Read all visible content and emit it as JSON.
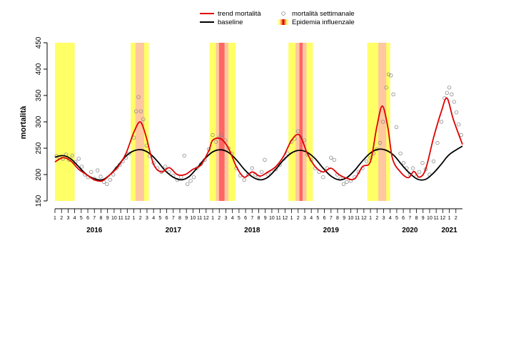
{
  "chart_data": {
    "type": "line",
    "ylabel": "mortalità",
    "xlabel": "",
    "ylim": [
      150,
      450
    ],
    "yticks": [
      150,
      200,
      250,
      300,
      350,
      400,
      450
    ],
    "x_range": [
      2016.0,
      2021.1667
    ],
    "month_labels": [
      "1",
      "2",
      "3",
      "4",
      "5",
      "6",
      "7",
      "8",
      "9",
      "10",
      "11",
      "12"
    ],
    "end_month_labels": [
      "1",
      "2"
    ],
    "year_labels": [
      {
        "label": "2016",
        "x": 2016.5
      },
      {
        "label": "2017",
        "x": 2017.5
      },
      {
        "label": "2018",
        "x": 2018.5
      },
      {
        "label": "2019",
        "x": 2019.5
      },
      {
        "label": "2020",
        "x": 2020.5
      },
      {
        "label": "2021",
        "x": 2021.0
      }
    ],
    "legend": {
      "trend": "trend mortalità",
      "baseline": "baseline",
      "weekly": "mortalità settimanale",
      "epidemic": "Epidemia influenzale"
    },
    "colors": {
      "trend": "#e00000",
      "baseline": "#000000",
      "points": "#8c8c8c",
      "epi_low": "#ffff66",
      "epi_mid": "#ffc8a0",
      "epi_high": "#ff6666"
    },
    "epidemic_periods": [
      {
        "level": "low",
        "x0": 2016.0,
        "x1": 2016.25
      },
      {
        "level": "low",
        "x0": 2016.96,
        "x1": 2017.19
      },
      {
        "level": "mid",
        "x0": 2017.02,
        "x1": 2017.13
      },
      {
        "level": "low",
        "x0": 2017.96,
        "x1": 2018.29
      },
      {
        "level": "mid",
        "x0": 2018.04,
        "x1": 2018.2
      },
      {
        "level": "high",
        "x0": 2018.08,
        "x1": 2018.15
      },
      {
        "level": "low",
        "x0": 2018.96,
        "x1": 2019.27
      },
      {
        "level": "mid",
        "x0": 2019.05,
        "x1": 2019.19
      },
      {
        "level": "high",
        "x0": 2019.1,
        "x1": 2019.14
      },
      {
        "level": "low",
        "x0": 2019.96,
        "x1": 2020.25
      },
      {
        "level": "mid",
        "x0": 2020.1,
        "x1": 2020.2
      }
    ],
    "series": [
      {
        "name": "trend mortalità",
        "x": [
          2016.0,
          2016.1,
          2016.2,
          2016.3,
          2016.4,
          2016.5,
          2016.6,
          2016.7,
          2016.8,
          2016.9,
          2017.0,
          2017.08,
          2017.15,
          2017.25,
          2017.35,
          2017.45,
          2017.55,
          2017.65,
          2017.75,
          2017.85,
          2017.95,
          2018.0,
          2018.1,
          2018.2,
          2018.3,
          2018.4,
          2018.5,
          2018.6,
          2018.7,
          2018.8,
          2018.9,
          2019.0,
          2019.1,
          2019.2,
          2019.3,
          2019.4,
          2019.5,
          2019.6,
          2019.7,
          2019.8,
          2019.9,
          2020.0,
          2020.08,
          2020.15,
          2020.22,
          2020.28,
          2020.38,
          2020.48,
          2020.55,
          2020.62,
          2020.7,
          2020.8,
          2020.9,
          2020.97,
          2021.05,
          2021.1667
        ],
        "values": [
          224,
          232,
          226,
          210,
          200,
          190,
          188,
          200,
          215,
          240,
          280,
          300,
          275,
          220,
          205,
          213,
          200,
          200,
          210,
          218,
          245,
          265,
          268,
          250,
          215,
          195,
          205,
          197,
          205,
          215,
          235,
          265,
          275,
          240,
          215,
          205,
          212,
          200,
          193,
          192,
          215,
          225,
          290,
          330,
          290,
          230,
          205,
          194,
          206,
          195,
          210,
          270,
          320,
          345,
          305,
          257
        ]
      },
      {
        "name": "baseline",
        "x": [
          2016.0,
          2016.1,
          2016.2,
          2016.3,
          2016.4,
          2016.5,
          2016.6,
          2016.7,
          2016.8,
          2016.9,
          2017.0,
          2017.1,
          2017.2,
          2017.3,
          2017.4,
          2017.5,
          2017.6,
          2017.7,
          2017.8,
          2017.9,
          2018.0,
          2018.1,
          2018.2,
          2018.3,
          2018.4,
          2018.5,
          2018.6,
          2018.7,
          2018.8,
          2018.9,
          2019.0,
          2019.1,
          2019.2,
          2019.3,
          2019.4,
          2019.5,
          2019.6,
          2019.7,
          2019.8,
          2019.9,
          2020.0,
          2020.1,
          2020.2,
          2020.3,
          2020.4,
          2020.5,
          2020.6,
          2020.7,
          2020.8,
          2020.9,
          2021.0,
          2021.1667
        ],
        "values": [
          233,
          236,
          230,
          215,
          200,
          192,
          190,
          200,
          217,
          235,
          245,
          247,
          240,
          225,
          207,
          195,
          190,
          196,
          212,
          230,
          243,
          247,
          242,
          228,
          210,
          196,
          190,
          195,
          210,
          228,
          241,
          246,
          242,
          230,
          212,
          197,
          190,
          194,
          208,
          226,
          241,
          248,
          246,
          236,
          218,
          202,
          191,
          191,
          203,
          220,
          238,
          254
        ]
      },
      {
        "name": "mortalità settimanale",
        "points": [
          [
            2016.02,
            235
          ],
          [
            2016.06,
            232
          ],
          [
            2016.1,
            230
          ],
          [
            2016.14,
            238
          ],
          [
            2016.18,
            228
          ],
          [
            2016.22,
            236
          ],
          [
            2016.26,
            224
          ],
          [
            2016.3,
            230
          ],
          [
            2016.34,
            215
          ],
          [
            2016.38,
            200
          ],
          [
            2016.42,
            195
          ],
          [
            2016.46,
            205
          ],
          [
            2016.5,
            192
          ],
          [
            2016.54,
            208
          ],
          [
            2016.58,
            196
          ],
          [
            2016.62,
            186
          ],
          [
            2016.66,
            182
          ],
          [
            2016.7,
            190
          ],
          [
            2016.74,
            200
          ],
          [
            2016.78,
            212
          ],
          [
            2016.82,
            218
          ],
          [
            2016.86,
            225
          ],
          [
            2016.9,
            232
          ],
          [
            2016.94,
            240
          ],
          [
            2017.0,
            270
          ],
          [
            2017.03,
            320
          ],
          [
            2017.06,
            347
          ],
          [
            2017.09,
            320
          ],
          [
            2017.12,
            305
          ],
          [
            2017.16,
            255
          ],
          [
            2017.2,
            235
          ],
          [
            2017.25,
            222
          ],
          [
            2017.3,
            212
          ],
          [
            2017.35,
            205
          ],
          [
            2017.4,
            215
          ],
          [
            2017.45,
            205
          ],
          [
            2017.5,
            198
          ],
          [
            2017.55,
            190
          ],
          [
            2017.6,
            195
          ],
          [
            2017.64,
            236
          ],
          [
            2017.68,
            182
          ],
          [
            2017.72,
            188
          ],
          [
            2017.76,
            195
          ],
          [
            2017.8,
            212
          ],
          [
            2017.85,
            220
          ],
          [
            2017.9,
            228
          ],
          [
            2017.95,
            248
          ],
          [
            2018.0,
            275
          ],
          [
            2018.04,
            262
          ],
          [
            2018.08,
            270
          ],
          [
            2018.12,
            275
          ],
          [
            2018.16,
            265
          ],
          [
            2018.2,
            250
          ],
          [
            2018.24,
            240
          ],
          [
            2018.3,
            212
          ],
          [
            2018.35,
            198
          ],
          [
            2018.4,
            190
          ],
          [
            2018.45,
            200
          ],
          [
            2018.5,
            212
          ],
          [
            2018.54,
            200
          ],
          [
            2018.58,
            196
          ],
          [
            2018.62,
            205
          ],
          [
            2018.66,
            228
          ],
          [
            2018.7,
            200
          ],
          [
            2018.75,
            205
          ],
          [
            2018.8,
            210
          ],
          [
            2018.85,
            218
          ],
          [
            2018.9,
            230
          ],
          [
            2018.95,
            240
          ],
          [
            2019.0,
            262
          ],
          [
            2019.04,
            268
          ],
          [
            2019.08,
            282
          ],
          [
            2019.12,
            272
          ],
          [
            2019.16,
            265
          ],
          [
            2019.2,
            238
          ],
          [
            2019.25,
            228
          ],
          [
            2019.3,
            212
          ],
          [
            2019.35,
            205
          ],
          [
            2019.4,
            195
          ],
          [
            2019.45,
            212
          ],
          [
            2019.5,
            232
          ],
          [
            2019.54,
            228
          ],
          [
            2019.58,
            200
          ],
          [
            2019.62,
            192
          ],
          [
            2019.66,
            182
          ],
          [
            2019.7,
            186
          ],
          [
            2019.75,
            188
          ],
          [
            2019.8,
            195
          ],
          [
            2019.85,
            205
          ],
          [
            2019.9,
            212
          ],
          [
            2019.95,
            225
          ],
          [
            2020.0,
            232
          ],
          [
            2020.04,
            240
          ],
          [
            2020.08,
            248
          ],
          [
            2020.12,
            260
          ],
          [
            2020.16,
            300
          ],
          [
            2020.2,
            365
          ],
          [
            2020.23,
            390
          ],
          [
            2020.26,
            388
          ],
          [
            2020.29,
            352
          ],
          [
            2020.33,
            290
          ],
          [
            2020.38,
            240
          ],
          [
            2020.42,
            222
          ],
          [
            2020.46,
            212
          ],
          [
            2020.5,
            200
          ],
          [
            2020.54,
            212
          ],
          [
            2020.58,
            196
          ],
          [
            2020.62,
            205
          ],
          [
            2020.66,
            222
          ],
          [
            2020.7,
            210
          ],
          [
            2020.75,
            200
          ],
          [
            2020.8,
            225
          ],
          [
            2020.85,
            260
          ],
          [
            2020.9,
            300
          ],
          [
            2020.94,
            345
          ],
          [
            2020.97,
            355
          ],
          [
            2021.0,
            365
          ],
          [
            2021.03,
            352
          ],
          [
            2021.06,
            338
          ],
          [
            2021.09,
            318
          ],
          [
            2021.12,
            295
          ],
          [
            2021.15,
            275
          ]
        ]
      }
    ]
  }
}
